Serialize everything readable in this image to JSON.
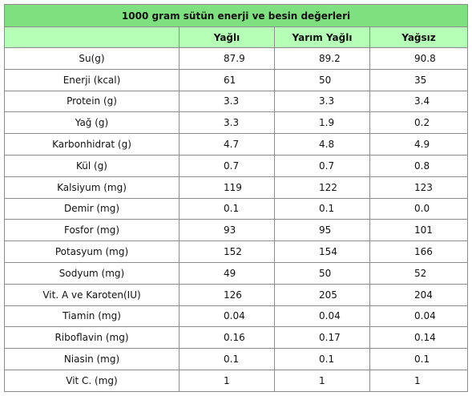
{
  "table": {
    "title": "1000 gram sütün enerji ve besin değerleri",
    "columns": [
      "",
      "Yağlı",
      "Yarım Yağlı",
      "Yağsız"
    ],
    "rows": [
      [
        "Su(g)",
        "87.9",
        "89.2",
        "90.8"
      ],
      [
        "Enerji (kcal)",
        "61",
        "50",
        "35"
      ],
      [
        "Protein (g)",
        "3.3",
        "3.3",
        "3.4"
      ],
      [
        "Yağ (g)",
        "3.3",
        "1.9",
        "0.2"
      ],
      [
        "Karbonhidrat (g)",
        "4.7",
        "4.8",
        "4.9"
      ],
      [
        "Kül (g)",
        "0.7",
        "0.7",
        "0.8"
      ],
      [
        "Kalsiyum (mg)",
        "119",
        "122",
        "123"
      ],
      [
        "Demir (mg)",
        "0.1",
        "0.1",
        "0.0"
      ],
      [
        "Fosfor (mg)",
        "93",
        "95",
        "101"
      ],
      [
        "Potasyum (mg)",
        "152",
        "154",
        "166"
      ],
      [
        "Sodyum (mg)",
        "49",
        "50",
        "52"
      ],
      [
        "Vit. A ve Karoten(IU)",
        "126",
        "205",
        "204"
      ],
      [
        "Tiamin (mg)",
        "0.04",
        "0.04",
        "0.04"
      ],
      [
        "Riboflavin (mg)",
        "0.16",
        "0.17",
        "0.14"
      ],
      [
        "Niasin (mg)",
        "0.1",
        "0.1",
        "0.1"
      ],
      [
        "Vit C. (mg)",
        "1",
        "1",
        "1"
      ]
    ]
  },
  "colors": {
    "title_bg": "#7ee07e",
    "header_bg": "#b6ffb6",
    "border": "#8c8c8c"
  }
}
